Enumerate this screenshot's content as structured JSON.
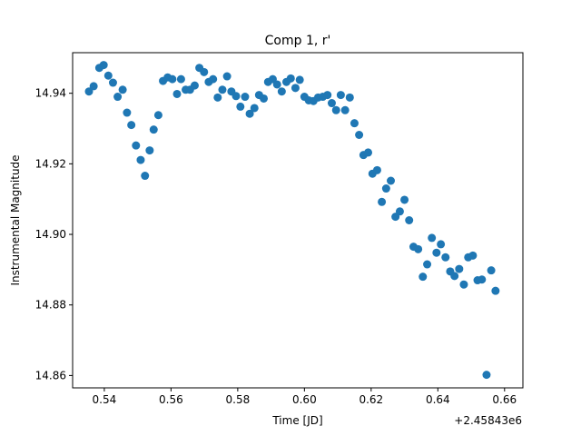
{
  "chart_data": {
    "type": "scatter",
    "title": "Comp 1, r'",
    "xlabel": "Time [JD]",
    "ylabel": "Instrumental Magnitude",
    "x_offset_label": "+2.45843e6",
    "xlim": [
      0.5305,
      0.6655
    ],
    "ylim": [
      14.8565,
      14.9515
    ],
    "x_ticks": [
      0.54,
      0.56,
      0.58,
      0.6,
      0.62,
      0.64,
      0.66
    ],
    "x_tick_labels": [
      "0.54",
      "0.56",
      "0.58",
      "0.60",
      "0.62",
      "0.64",
      "0.66"
    ],
    "y_ticks": [
      14.86,
      14.88,
      14.9,
      14.92,
      14.94
    ],
    "y_tick_labels": [
      "14.86",
      "14.88",
      "14.90",
      "14.92",
      "14.94"
    ],
    "grid": false,
    "marker_color": "#1f77b4",
    "series": [
      {
        "points": [
          [
            0.5354,
            14.9405
          ],
          [
            0.5368,
            14.942
          ],
          [
            0.5385,
            14.9472
          ],
          [
            0.5398,
            14.948
          ],
          [
            0.5412,
            14.945
          ],
          [
            0.5426,
            14.943
          ],
          [
            0.544,
            14.939
          ],
          [
            0.5455,
            14.941
          ],
          [
            0.5468,
            14.9345
          ],
          [
            0.5481,
            14.931
          ],
          [
            0.5495,
            14.9252
          ],
          [
            0.5509,
            14.9211
          ],
          [
            0.5522,
            14.9166
          ],
          [
            0.5536,
            14.9238
          ],
          [
            0.5548,
            14.9297
          ],
          [
            0.5562,
            14.9338
          ],
          [
            0.5576,
            14.9435
          ],
          [
            0.559,
            14.9445
          ],
          [
            0.5604,
            14.944
          ],
          [
            0.5618,
            14.9398
          ],
          [
            0.563,
            14.944
          ],
          [
            0.5644,
            14.941
          ],
          [
            0.5657,
            14.941
          ],
          [
            0.5671,
            14.9422
          ],
          [
            0.5685,
            14.9472
          ],
          [
            0.5699,
            14.946
          ],
          [
            0.5713,
            14.9432
          ],
          [
            0.5726,
            14.944
          ],
          [
            0.574,
            14.9388
          ],
          [
            0.5754,
            14.941
          ],
          [
            0.5768,
            14.9448
          ],
          [
            0.5781,
            14.9405
          ],
          [
            0.5795,
            14.9392
          ],
          [
            0.5808,
            14.9362
          ],
          [
            0.5822,
            14.939
          ],
          [
            0.5836,
            14.9342
          ],
          [
            0.585,
            14.9358
          ],
          [
            0.5864,
            14.9395
          ],
          [
            0.5878,
            14.9385
          ],
          [
            0.5891,
            14.9432
          ],
          [
            0.5905,
            14.944
          ],
          [
            0.5918,
            14.9425
          ],
          [
            0.5932,
            14.9405
          ],
          [
            0.5946,
            14.9432
          ],
          [
            0.5959,
            14.9442
          ],
          [
            0.5973,
            14.9415
          ],
          [
            0.5986,
            14.9438
          ],
          [
            0.6,
            14.939
          ],
          [
            0.6013,
            14.938
          ],
          [
            0.6027,
            14.9378
          ],
          [
            0.6041,
            14.9388
          ],
          [
            0.6055,
            14.939
          ],
          [
            0.6069,
            14.9395
          ],
          [
            0.6082,
            14.9372
          ],
          [
            0.6095,
            14.9352
          ],
          [
            0.6109,
            14.9395
          ],
          [
            0.6122,
            14.9352
          ],
          [
            0.6136,
            14.9388
          ],
          [
            0.615,
            14.9315
          ],
          [
            0.6164,
            14.9282
          ],
          [
            0.6177,
            14.9225
          ],
          [
            0.6191,
            14.9232
          ],
          [
            0.6204,
            14.9172
          ],
          [
            0.6218,
            14.9182
          ],
          [
            0.6232,
            14.9092
          ],
          [
            0.6245,
            14.913
          ],
          [
            0.6259,
            14.9152
          ],
          [
            0.6273,
            14.905
          ],
          [
            0.6286,
            14.9065
          ],
          [
            0.63,
            14.9098
          ],
          [
            0.6314,
            14.904
          ],
          [
            0.6327,
            14.8965
          ],
          [
            0.6341,
            14.8958
          ],
          [
            0.6355,
            14.888
          ],
          [
            0.6368,
            14.8915
          ],
          [
            0.6382,
            14.899
          ],
          [
            0.6396,
            14.8948
          ],
          [
            0.6409,
            14.8972
          ],
          [
            0.6423,
            14.8935
          ],
          [
            0.6437,
            14.8895
          ],
          [
            0.645,
            14.8882
          ],
          [
            0.6464,
            14.8902
          ],
          [
            0.6478,
            14.8858
          ],
          [
            0.6491,
            14.8935
          ],
          [
            0.6505,
            14.894
          ],
          [
            0.6519,
            14.887
          ],
          [
            0.6532,
            14.8872
          ],
          [
            0.6546,
            14.8602
          ],
          [
            0.656,
            14.8898
          ],
          [
            0.6573,
            14.884
          ]
        ]
      }
    ]
  }
}
